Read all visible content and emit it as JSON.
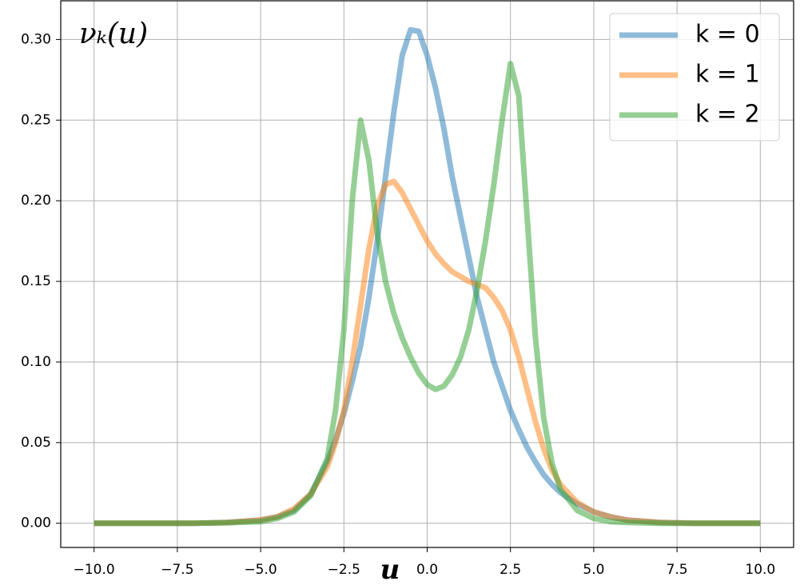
{
  "chart_data": {
    "type": "line",
    "xlabel": "u",
    "ylabel": "νₖ(u)",
    "x": [
      -10,
      -9,
      -8,
      -7,
      -6,
      -5,
      -4.5,
      -4,
      -3.5,
      -3,
      -2.75,
      -2.5,
      -2.25,
      -2,
      -1.75,
      -1.5,
      -1.25,
      -1,
      -0.75,
      -0.5,
      -0.25,
      0,
      0.25,
      0.5,
      0.75,
      1,
      1.25,
      1.5,
      1.75,
      2,
      2.25,
      2.5,
      2.75,
      3,
      3.25,
      3.5,
      3.75,
      4,
      4.5,
      5,
      5.5,
      6,
      7,
      8,
      9,
      10
    ],
    "series": [
      {
        "name": "k = 0",
        "color": "#1f77b4",
        "values": [
          0,
          0,
          0,
          0,
          0.0005,
          0.002,
          0.004,
          0.008,
          0.018,
          0.038,
          0.052,
          0.068,
          0.088,
          0.11,
          0.14,
          0.175,
          0.215,
          0.255,
          0.29,
          0.306,
          0.305,
          0.29,
          0.27,
          0.245,
          0.215,
          0.19,
          0.165,
          0.14,
          0.12,
          0.1,
          0.085,
          0.07,
          0.058,
          0.047,
          0.038,
          0.03,
          0.024,
          0.019,
          0.012,
          0.007,
          0.004,
          0.002,
          0.0005,
          0,
          0,
          0
        ]
      },
      {
        "name": "k = 1",
        "color": "#ff7f0e",
        "values": [
          0,
          0,
          0,
          0,
          0.0005,
          0.002,
          0.004,
          0.009,
          0.018,
          0.035,
          0.05,
          0.07,
          0.1,
          0.135,
          0.17,
          0.197,
          0.21,
          0.212,
          0.205,
          0.195,
          0.185,
          0.175,
          0.167,
          0.161,
          0.156,
          0.153,
          0.15,
          0.148,
          0.146,
          0.14,
          0.132,
          0.12,
          0.103,
          0.083,
          0.063,
          0.046,
          0.033,
          0.024,
          0.013,
          0.007,
          0.004,
          0.002,
          0.0005,
          0,
          0,
          0
        ]
      },
      {
        "name": "k = 2",
        "color": "#2ca02c",
        "values": [
          0,
          0,
          0,
          0,
          0.0003,
          0.001,
          0.003,
          0.007,
          0.017,
          0.04,
          0.07,
          0.12,
          0.2,
          0.25,
          0.225,
          0.18,
          0.15,
          0.13,
          0.115,
          0.103,
          0.093,
          0.086,
          0.083,
          0.085,
          0.092,
          0.103,
          0.12,
          0.145,
          0.175,
          0.21,
          0.25,
          0.285,
          0.265,
          0.19,
          0.115,
          0.065,
          0.037,
          0.021,
          0.008,
          0.003,
          0.001,
          0.0005,
          0,
          0,
          0,
          0
        ]
      }
    ],
    "xlim": [
      -11,
      11
    ],
    "xticks": [
      {
        "value": -10,
        "label": "−10.0"
      },
      {
        "value": -7.5,
        "label": "−7.5"
      },
      {
        "value": -5,
        "label": "−5.0"
      },
      {
        "value": -2.5,
        "label": "−2.5"
      },
      {
        "value": 0,
        "label": "0.0"
      },
      {
        "value": 2.5,
        "label": "2.5"
      },
      {
        "value": 5,
        "label": "5.0"
      },
      {
        "value": 7.5,
        "label": "7.5"
      },
      {
        "value": 10,
        "label": "10.0"
      }
    ],
    "ylim": [
      -0.015,
      0.324
    ],
    "yticks": [
      {
        "value": 0,
        "label": "0.00"
      },
      {
        "value": 0.05,
        "label": "0.05"
      },
      {
        "value": 0.1,
        "label": "0.10"
      },
      {
        "value": 0.15,
        "label": "0.15"
      },
      {
        "value": 0.2,
        "label": "0.20"
      },
      {
        "value": 0.25,
        "label": "0.25"
      },
      {
        "value": 0.3,
        "label": "0.30"
      }
    ],
    "grid": true,
    "legend": "upper right",
    "line_alpha": 0.5
  }
}
